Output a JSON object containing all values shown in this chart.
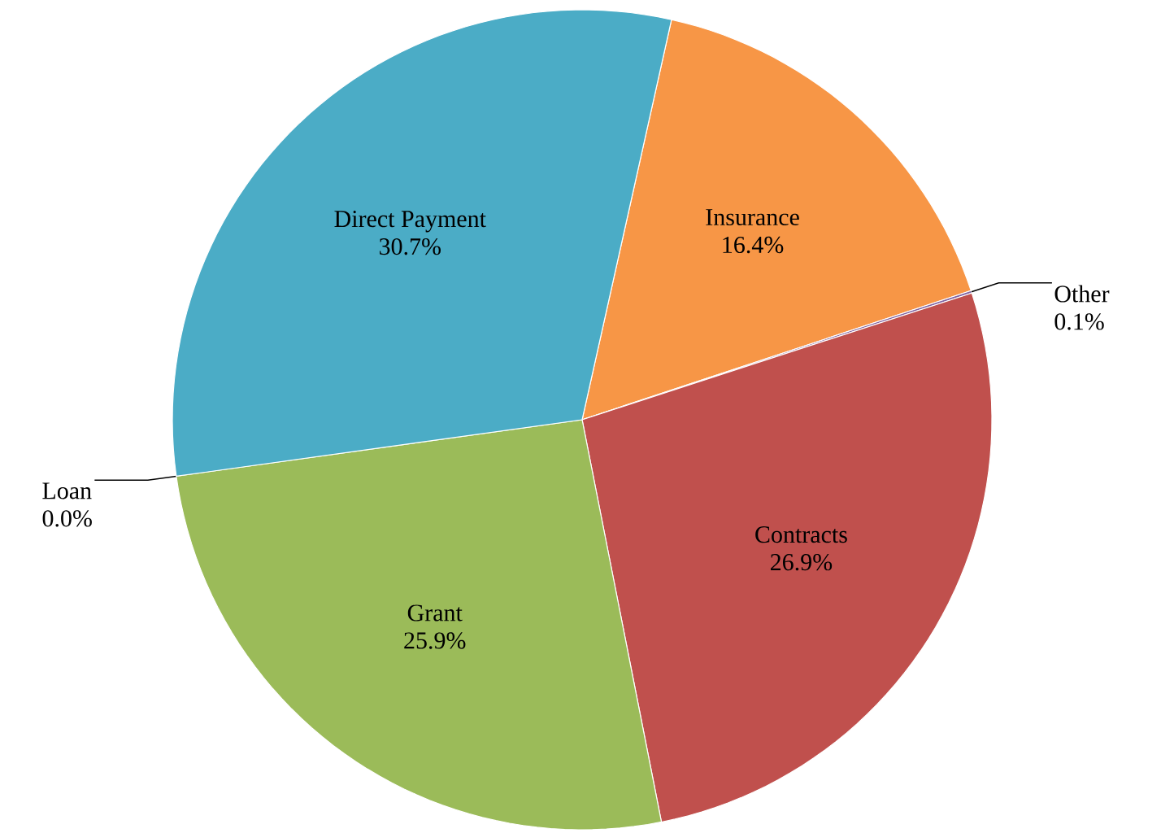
{
  "chart_data": {
    "type": "pie",
    "categories": [
      "Insurance",
      "Other",
      "Contracts",
      "Grant",
      "Loan",
      "Direct Payment"
    ],
    "values": [
      16.4,
      0.1,
      26.9,
      25.9,
      0.0,
      30.7
    ],
    "value_labels": [
      "16.4%",
      "0.1%",
      "26.9%",
      "25.9%",
      "0.0%",
      "30.7%"
    ],
    "colors": [
      "#f79646",
      "#8064a2",
      "#c0504d",
      "#9bbb59",
      "#1f497d",
      "#4bacc6"
    ]
  }
}
